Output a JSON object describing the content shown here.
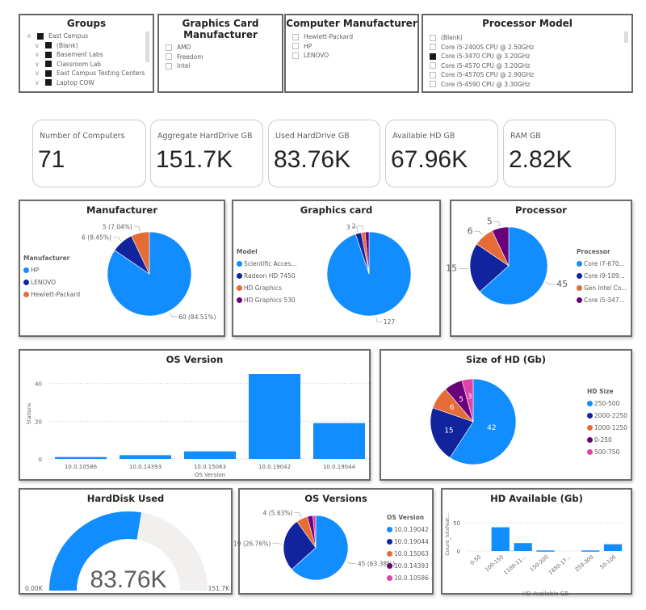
{
  "colors": {
    "blue": "#118DFF",
    "navy": "#12239E",
    "orange": "#E66C37",
    "purple": "#6B007B",
    "pink": "#E044A7"
  },
  "slicers": {
    "groups": {
      "title": "Groups",
      "items": [
        {
          "label": "East Campus",
          "checked": true,
          "expand": "chevron-up-icon"
        },
        {
          "label": "(Blank)",
          "checked": true,
          "expand": "chevron-down-icon"
        },
        {
          "label": "Basement Labs",
          "checked": true,
          "expand": "chevron-down-icon"
        },
        {
          "label": "Classroom Lab",
          "checked": true,
          "expand": "chevron-down-icon"
        },
        {
          "label": "East Campus Testing Centers",
          "checked": true,
          "expand": "chevron-down-icon"
        },
        {
          "label": "Laptop COW",
          "checked": true,
          "expand": "chevron-down-icon"
        }
      ]
    },
    "graphics": {
      "title": "Graphics Card Manufacturer",
      "items": [
        {
          "label": "AMD",
          "checked": false
        },
        {
          "label": "Freedom",
          "checked": false
        },
        {
          "label": "Intel",
          "checked": false
        }
      ]
    },
    "manufacturer": {
      "title": "Computer Manufacturer",
      "items": [
        {
          "label": "Hewlett-Packard",
          "checked": false
        },
        {
          "label": "HP",
          "checked": false
        },
        {
          "label": "LENOVO",
          "checked": false
        }
      ]
    },
    "processor": {
      "title": "Processor Model",
      "items": [
        {
          "label": "(Blank)",
          "checked": false
        },
        {
          "label": "Core i5-2400S CPU @ 2.50GHz",
          "checked": false
        },
        {
          "label": "Core i5-3470 CPU @ 3.20GHz",
          "checked": true
        },
        {
          "label": "Core i5-4570 CPU @ 3.20GHz",
          "checked": false
        },
        {
          "label": "Core i5-4570S CPU @ 2.90GHz",
          "checked": false
        },
        {
          "label": "Core i5-4590 CPU @ 3.30GHz",
          "checked": false
        }
      ]
    }
  },
  "cards": [
    {
      "label": "Number of Computers",
      "value": "71"
    },
    {
      "label": "Aggregate HardDrive GB",
      "value": "151.7K"
    },
    {
      "label": "Used HardDrive GB",
      "value": "83.76K"
    },
    {
      "label": "Available HD GB",
      "value": "67.96K"
    },
    {
      "label": "RAM GB",
      "value": "2.82K"
    }
  ],
  "chart_data": [
    {
      "id": "manufacturer",
      "type": "pie",
      "title": "Manufacturer",
      "legend_title": "Manufacturer",
      "legend": "left",
      "categories": [
        "HP",
        "LENOVO",
        "Hewlett-Packard"
      ],
      "values": [
        60,
        6,
        5
      ],
      "data_labels": [
        "60 (84.51%)",
        "6 (8.45%)",
        "5 (7.04%)"
      ],
      "colors": [
        "#118DFF",
        "#12239E",
        "#E66C37"
      ]
    },
    {
      "id": "graphics",
      "type": "pie",
      "title": "Graphics card",
      "legend_title": "Model",
      "legend": "left",
      "categories": [
        "Scientific Acces...",
        "Radeon HD 7450",
        "HD Graphics",
        "HD Graphics 530"
      ],
      "values": [
        127,
        3,
        2,
        2
      ],
      "data_labels": [
        "127",
        "3",
        "2",
        ""
      ],
      "colors": [
        "#118DFF",
        "#12239E",
        "#E66C37",
        "#6B007B"
      ]
    },
    {
      "id": "processor",
      "type": "pie",
      "title": "Processor",
      "legend_title": "Processor",
      "legend": "right",
      "categories": [
        "Core i7-670...",
        "Core i9-109...",
        "Gen Intel Co...",
        "Core i5-347..."
      ],
      "values": [
        45,
        15,
        6,
        5
      ],
      "data_labels": [
        "45",
        "15",
        "6",
        "5"
      ],
      "colors": [
        "#118DFF",
        "#12239E",
        "#E66C37",
        "#6B007B"
      ]
    },
    {
      "id": "osversion",
      "type": "bar",
      "title": "OS Version",
      "xlabel": "OS Version",
      "ylabel": "Stations",
      "categories": [
        "10.0.10586",
        "10.0.14393",
        "10.0.15063",
        "10.0.19042",
        "10.0.19044"
      ],
      "values": [
        1,
        2,
        4,
        45,
        19
      ],
      "yticks": [
        0,
        20,
        40
      ],
      "ylim": [
        0,
        48
      ],
      "grid": true
    },
    {
      "id": "hdsize",
      "type": "pie",
      "title": "Size of HD (Gb)",
      "legend_title": "HD Size",
      "legend": "right",
      "categories": [
        "250-500",
        "2000-2250",
        "1000-1250",
        "0-250",
        "500-750"
      ],
      "values": [
        42,
        15,
        6,
        5,
        3
      ],
      "data_labels": [
        "42",
        "15",
        "6",
        "5",
        "3"
      ],
      "colors": [
        "#118DFF",
        "#12239E",
        "#E66C37",
        "#6B007B",
        "#E044A7"
      ]
    },
    {
      "id": "gauge",
      "type": "gauge",
      "title": "HardDisk Used",
      "value": 83.76,
      "min": 0,
      "max": 151.7,
      "value_label": "83.76K",
      "min_label": "0.00K",
      "max_label": "151.7K"
    },
    {
      "id": "osversions",
      "type": "pie",
      "title": "OS Versions",
      "legend_title": "OS Version",
      "legend": "right",
      "categories": [
        "10.0.19042",
        "10.0.19044",
        "10.0.15063",
        "10.0.14393",
        "10.0.10586"
      ],
      "values": [
        45,
        19,
        4,
        2,
        1
      ],
      "data_labels": [
        "45 (63.38%)",
        "19 (26.76%)",
        "4 (5.63%)",
        "",
        ""
      ],
      "colors": [
        "#118DFF",
        "#12239E",
        "#E66C37",
        "#6B007B",
        "#E044A7"
      ]
    },
    {
      "id": "hdavail",
      "type": "bar",
      "title": "HD Available (Gb)",
      "xlabel": "HD Available GB",
      "ylabel": "Count_lotsfeat...",
      "categories": [
        "0-50",
        "100-150",
        "1100-11...",
        "150-200",
        "1650-17...",
        "250-300",
        "50-100"
      ],
      "values": [
        0,
        42,
        14,
        1,
        0,
        1,
        12
      ],
      "yticks": [
        0,
        50
      ],
      "ylim": [
        0,
        60
      ],
      "grid": true
    }
  ]
}
